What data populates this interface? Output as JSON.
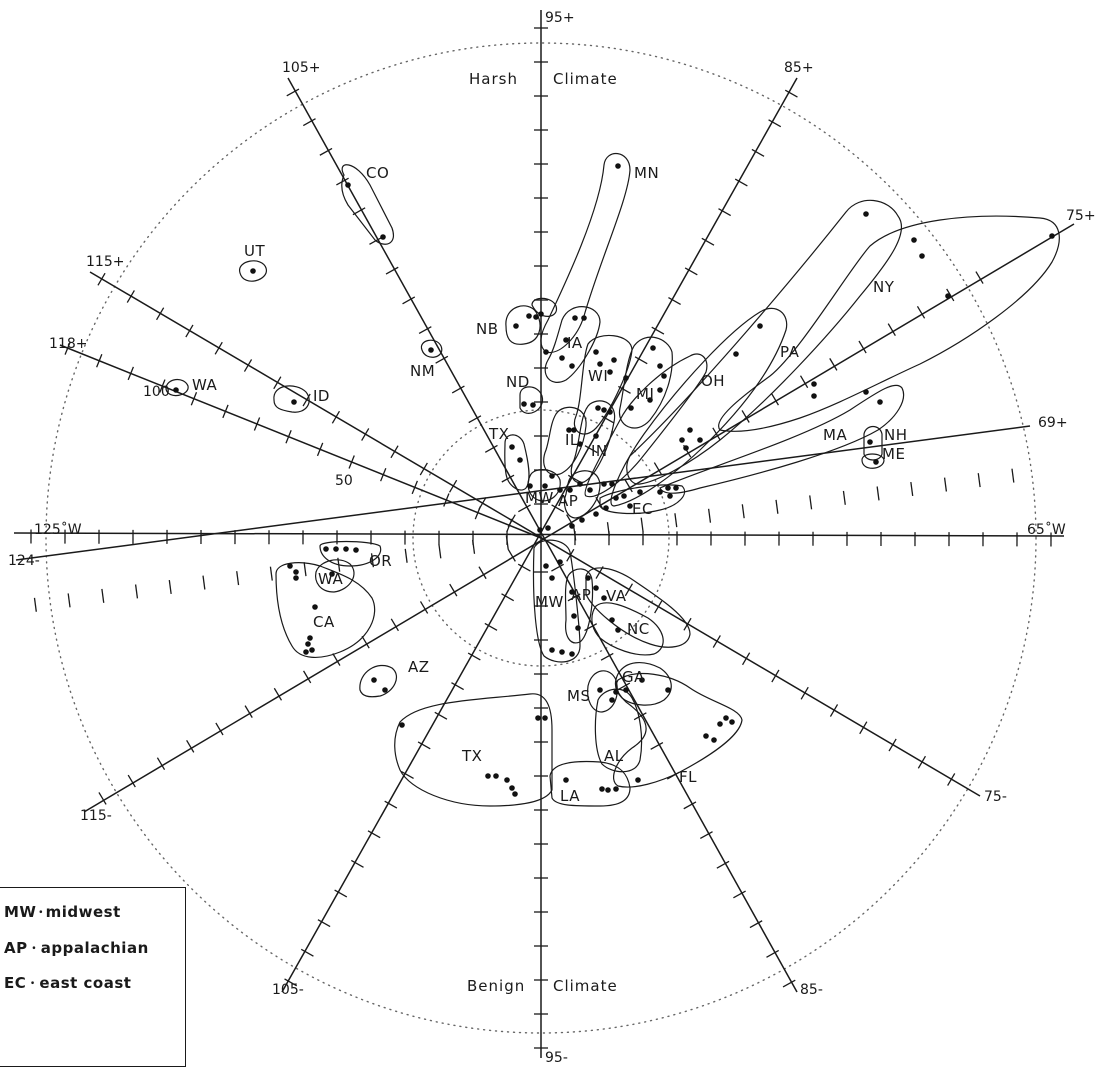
{
  "axes": {
    "vertical_top": "95+",
    "vertical_bottom": "95-",
    "horizontal_left": "125˚W",
    "horizontal_right": "65˚W",
    "spokes": [
      {
        "plus": "105+",
        "minus": "85-"
      },
      {
        "plus": "85+",
        "minus": "105-"
      },
      {
        "plus": "115+",
        "minus": "75-"
      },
      {
        "plus": "75+",
        "minus": "115-"
      },
      {
        "plus": "118+",
        "minus": ""
      },
      {
        "plus": "69+",
        "minus": "124-"
      }
    ]
  },
  "scale_labels": {
    "outer": "100",
    "inner": "50"
  },
  "climate": {
    "harsh_left": "Harsh",
    "harsh_right": "Climate",
    "benign_left": "Benign",
    "benign_right": "Climate"
  },
  "regions": {
    "harsh": [
      "CO",
      "UT",
      "NM",
      "WA",
      "ID",
      "NB",
      "MN",
      "IA",
      "ND",
      "WI",
      "MI",
      "IL",
      "IN",
      "TX",
      "MW",
      "AP",
      "OH",
      "PA",
      "NY",
      "MA",
      "NH",
      "ME",
      "EC"
    ],
    "benign": [
      "OR",
      "WA",
      "CA",
      "AZ",
      "MW",
      "AP",
      "VA",
      "NC",
      "MS",
      "GA",
      "TX",
      "AL",
      "FL",
      "LA"
    ]
  },
  "legend": [
    {
      "code": "MW",
      "sep": "ꞏ",
      "text": "midwest"
    },
    {
      "code": "AP",
      "sep": "ꞏ",
      "text": "appalachian"
    },
    {
      "code": "EC",
      "sep": "ꞏ",
      "text": "east coast"
    }
  ]
}
